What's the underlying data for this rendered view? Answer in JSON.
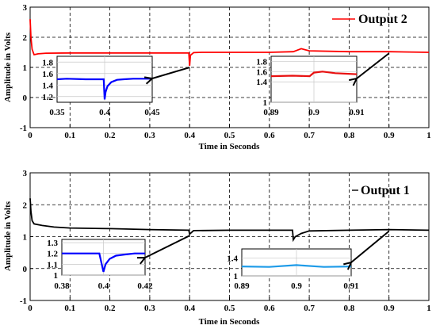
{
  "chart_data": [
    {
      "type": "line",
      "ylabel": "Amplitude in Volts",
      "xlabel": "Time in Seconds",
      "xlim": [
        0,
        1
      ],
      "ylim": [
        -1,
        3
      ],
      "xticks": [
        "0",
        "0.1",
        "0.2",
        "0.3",
        "0.4",
        "0.5",
        "0.6",
        "0.7",
        "0.8",
        "0.9",
        "1"
      ],
      "yticks": [
        "-1",
        "0",
        "1",
        "2",
        "3"
      ],
      "grid": true,
      "legend": {
        "position": "top-right",
        "entries": [
          "Output 2"
        ]
      },
      "series": [
        {
          "name": "Output 2",
          "color": "#ff0000",
          "x": [
            0,
            0.002,
            0.005,
            0.01,
            0.02,
            0.04,
            0.1,
            0.2,
            0.3,
            0.398,
            0.4,
            0.402,
            0.41,
            0.43,
            0.5,
            0.6,
            0.66,
            0.68,
            0.7,
            0.8,
            0.9,
            1.0
          ],
          "y": [
            2.6,
            2.0,
            1.6,
            1.42,
            1.45,
            1.47,
            1.48,
            1.48,
            1.48,
            1.48,
            1.05,
            1.4,
            1.49,
            1.5,
            1.5,
            1.5,
            1.52,
            1.62,
            1.55,
            1.52,
            1.52,
            1.5
          ]
        }
      ],
      "insets": [
        {
          "color": "#0000ff",
          "xticks": [
            "0.35",
            "0.4",
            "0.45"
          ],
          "yticks": [
            "1.8",
            "1.6",
            "1.4",
            "1.2"
          ],
          "xlim": [
            0.35,
            0.45
          ],
          "ylim": [
            1.1,
            1.9
          ],
          "x": [
            0.35,
            0.36,
            0.38,
            0.395,
            0.399,
            0.4,
            0.401,
            0.403,
            0.407,
            0.413,
            0.42,
            0.43,
            0.45
          ],
          "y": [
            1.5,
            1.51,
            1.5,
            1.5,
            1.5,
            1.15,
            1.28,
            1.38,
            1.45,
            1.49,
            1.5,
            1.51,
            1.51
          ],
          "zoom_target_x": 0.4
        },
        {
          "color": "#e81010",
          "xticks": [
            "0.89",
            "0.9",
            "0.91"
          ],
          "yticks": [
            "1.8",
            "1.6",
            "1.4",
            "1"
          ],
          "xlim": [
            0.89,
            0.91
          ],
          "ylim": [
            1.0,
            1.9
          ],
          "x": [
            0.89,
            0.895,
            0.899,
            0.9,
            0.902,
            0.905,
            0.91
          ],
          "y": [
            1.51,
            1.52,
            1.51,
            1.58,
            1.6,
            1.57,
            1.55
          ],
          "zoom_target_x": 0.9
        }
      ]
    },
    {
      "type": "line",
      "ylabel": "Amplitude in Volts",
      "xlabel": "Time in Seconds",
      "xlim": [
        0,
        1
      ],
      "ylim": [
        -1,
        3
      ],
      "xticks": [
        "0",
        "0.1",
        "0.2",
        "0.3",
        "0.4",
        "0.5",
        "0.6",
        "0.7",
        "0.8",
        "0.9",
        "1"
      ],
      "yticks": [
        "-1",
        "0",
        "1",
        "2",
        "3"
      ],
      "grid": true,
      "legend": {
        "position": "top-right",
        "entries": [
          "Output 1"
        ]
      },
      "series": [
        {
          "name": "Output 1",
          "color": "#000000",
          "x": [
            0,
            0.002,
            0.005,
            0.01,
            0.03,
            0.06,
            0.1,
            0.2,
            0.3,
            0.398,
            0.4,
            0.41,
            0.5,
            0.6,
            0.658,
            0.66,
            0.665,
            0.68,
            0.7,
            0.8,
            0.9,
            1.0
          ],
          "y": [
            2.2,
            1.8,
            1.5,
            1.4,
            1.35,
            1.3,
            1.27,
            1.25,
            1.22,
            1.2,
            1.08,
            1.19,
            1.2,
            1.2,
            1.2,
            0.9,
            1.0,
            1.1,
            1.18,
            1.2,
            1.22,
            1.2
          ]
        }
      ],
      "insets": [
        {
          "color": "#0000ff",
          "xticks": [
            "0.38",
            "0.4",
            "0.42"
          ],
          "yticks": [
            "1.3",
            "1.2",
            "1.1",
            "1"
          ],
          "xlim": [
            0.38,
            0.42
          ],
          "ylim": [
            1.0,
            1.33
          ],
          "x": [
            0.38,
            0.39,
            0.398,
            0.4,
            0.401,
            0.403,
            0.406,
            0.41,
            0.415,
            0.42
          ],
          "y": [
            1.2,
            1.2,
            1.2,
            1.03,
            1.1,
            1.15,
            1.18,
            1.19,
            1.2,
            1.2
          ],
          "zoom_target_x": 0.4
        },
        {
          "color": "#1e9be8",
          "xticks": [
            "0.89",
            "0.9",
            "0.91"
          ],
          "yticks": [
            "1.4",
            "1"
          ],
          "xlim": [
            0.89,
            0.91
          ],
          "ylim": [
            1.0,
            1.6
          ],
          "x": [
            0.89,
            0.895,
            0.9,
            0.905,
            0.91
          ],
          "y": [
            1.21,
            1.2,
            1.24,
            1.2,
            1.21
          ],
          "zoom_target_x": 0.9
        }
      ]
    }
  ]
}
